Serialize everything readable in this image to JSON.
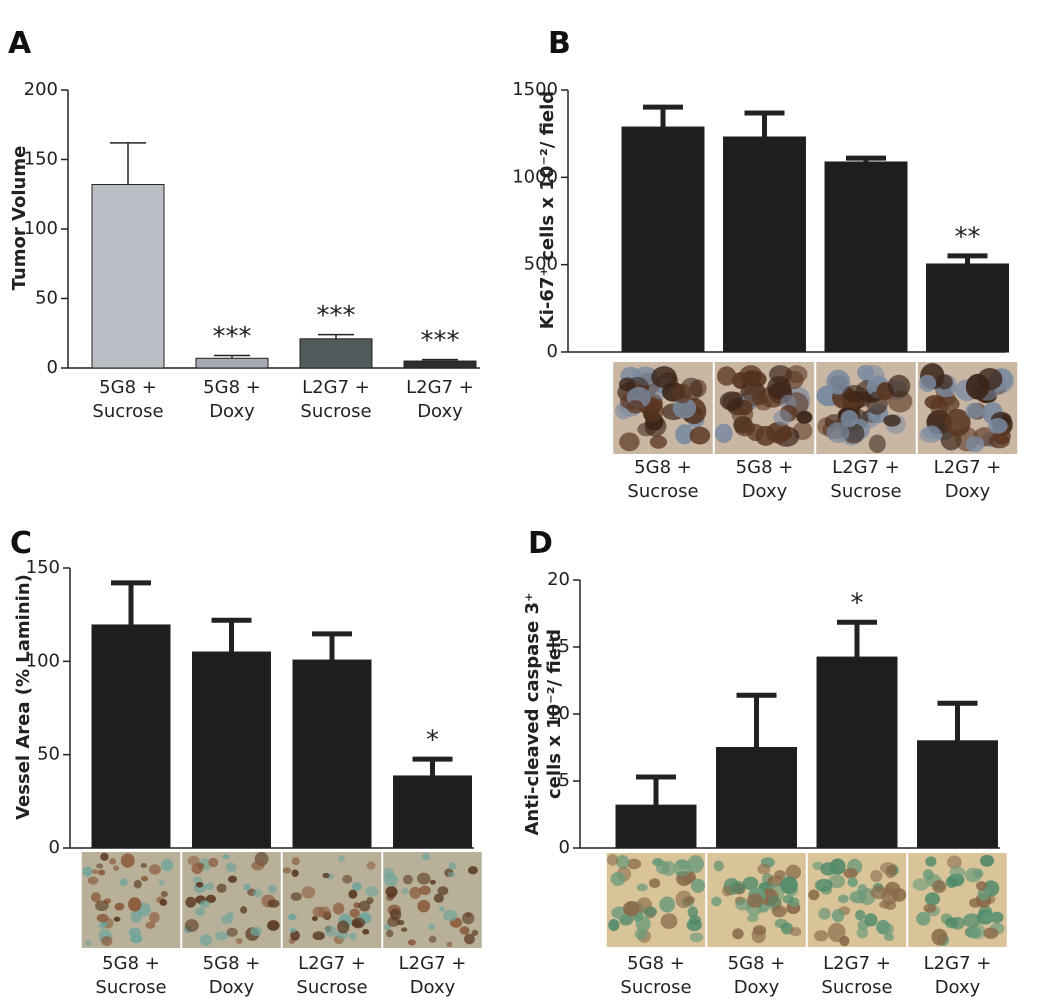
{
  "chart_data": [
    {
      "type": "bar",
      "panel": "A",
      "ylabel": "Tumor Volume",
      "categories": [
        "5G8 + Sucrose",
        "5G8 + Doxy",
        "L2G7 + Sucrose",
        "L2G7 + Doxy"
      ],
      "values": [
        132,
        7,
        21,
        5
      ],
      "errors": [
        30,
        2,
        3,
        1
      ],
      "colors": [
        "#b9bdc4",
        "#a4aab1",
        "#505b5b",
        "#2e2e2e"
      ],
      "annotations": [
        null,
        "***",
        "***",
        "***"
      ],
      "ylim": [
        0,
        200
      ],
      "yticks": [
        0,
        50,
        100,
        150,
        200
      ]
    },
    {
      "type": "bar",
      "panel": "B",
      "ylabel": "Ki-67⁺ cells x 10⁻²/ field",
      "categories": [
        "5G8 + Sucrose",
        "5G8 + Doxy",
        "L2G7 + Sucrose",
        "L2G7 + Doxy"
      ],
      "values": [
        1288,
        1231,
        1088,
        504
      ],
      "errors": [
        114,
        137,
        22,
        46
      ],
      "color": "#1e1e1e",
      "annotations": [
        null,
        null,
        null,
        "**"
      ],
      "ylim": [
        0,
        1500
      ],
      "yticks": [
        0,
        500,
        1000,
        1500
      ]
    },
    {
      "type": "bar",
      "panel": "C",
      "ylabel": "Vessel Area (% Laminin)",
      "categories": [
        "5G8 + Sucrose",
        "5G8 + Doxy",
        "L2G7 + Sucrose",
        "L2G7 + Doxy"
      ],
      "values": [
        119.5,
        105,
        100.7,
        38.6
      ],
      "errors": [
        22.5,
        17,
        14,
        9
      ],
      "color": "#1e1e1e",
      "annotations": [
        null,
        null,
        null,
        "*"
      ],
      "ylim": [
        0,
        150
      ],
      "yticks": [
        0,
        50,
        100,
        150
      ]
    },
    {
      "type": "bar",
      "panel": "D",
      "ylabel": "Anti-cleaved caspase 3⁺ cells x 10⁻²/ field",
      "categories": [
        "5G8 + Sucrose",
        "5G8 + Doxy",
        "L2G7 + Sucrose",
        "L2G7 + Doxy"
      ],
      "values": [
        3.2,
        7.5,
        14.25,
        8.0
      ],
      "errors": [
        2.1,
        3.9,
        2.6,
        2.8
      ],
      "color": "#1e1e1e",
      "annotations": [
        null,
        null,
        "*",
        null
      ],
      "ylim": [
        0,
        20
      ],
      "yticks": [
        0,
        5,
        10,
        15,
        20
      ]
    }
  ]
}
